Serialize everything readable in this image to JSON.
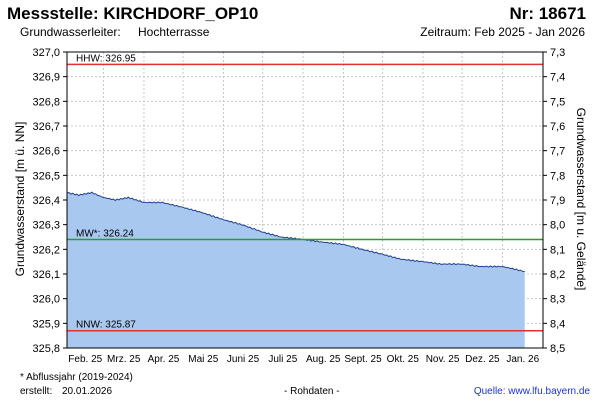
{
  "header": {
    "title": "Messstelle: KIRCHDORF_OP10",
    "number": "Nr: 18671",
    "aquifer_label": "Grundwasserleiter:",
    "aquifer_value": "Hochterrasse",
    "period": "Zeitraum: Feb 2025 - Jan 2026"
  },
  "footer": {
    "note": "* Abflussjahr (2019-2024)",
    "created_label": "erstellt:",
    "created_date": "20.01.2026",
    "rawdata": "- Rohdaten -",
    "source": "Quelle: www.lfu.bayern.de"
  },
  "colors": {
    "area_fill": "#a9c8ef",
    "line": "#1f3f8f",
    "hhw": "#e03030",
    "mw": "#2a9a2a",
    "nnw": "#e03030",
    "grid": "#c8c8c8"
  },
  "chart_data": {
    "type": "area",
    "ylabel": "Grundwasserstand [m ü. NN]",
    "y2label": "Grundwasserstand [m u. Gelände]",
    "ylim": [
      325.8,
      327.0
    ],
    "y2lim": [
      7.3,
      8.5
    ],
    "yticks": [
      "327,0",
      "326,9",
      "326,8",
      "326,7",
      "326,6",
      "326,5",
      "326,4",
      "326,3",
      "326,2",
      "326,1",
      "326,0",
      "325,9",
      "325,8"
    ],
    "y2ticks": [
      "7,3",
      "7,4",
      "7,5",
      "7,6",
      "7,7",
      "7,8",
      "7,9",
      "8,0",
      "8,1",
      "8,2",
      "8,3",
      "8,4",
      "8,5"
    ],
    "xticks": [
      "Feb. 25",
      "Mrz. 25",
      "Apr. 25",
      "Mai 25",
      "Juni 25",
      "Juli 25",
      "Aug. 25",
      "Sept. 25",
      "Okt. 25",
      "Nov. 25",
      "Dez. 25",
      "Jan. 26"
    ],
    "grid": true,
    "reference_lines": [
      {
        "label": "HHW: 326.95",
        "value": 326.95,
        "color": "#e03030"
      },
      {
        "label": "MW*: 326.24",
        "value": 326.24,
        "color": "#2a9a2a"
      },
      {
        "label": "NNW: 325.87",
        "value": 325.87,
        "color": "#e03030"
      }
    ],
    "series": [
      {
        "x": [
          "2025-02-01",
          "2025-02-10",
          "2025-02-20",
          "2025-03-01",
          "2025-03-10",
          "2025-03-20",
          "2025-04-01",
          "2025-04-15",
          "2025-05-01",
          "2025-05-15",
          "2025-06-01",
          "2025-06-15",
          "2025-07-01",
          "2025-07-15",
          "2025-08-01",
          "2025-08-15",
          "2025-09-01",
          "2025-09-15",
          "2025-10-01",
          "2025-10-15",
          "2025-11-01",
          "2025-11-15",
          "2025-12-01",
          "2025-12-15",
          "2026-01-01",
          "2026-01-10",
          "2026-01-18"
        ],
        "values": [
          326.43,
          326.42,
          326.43,
          326.41,
          326.4,
          326.41,
          326.39,
          326.39,
          326.37,
          326.35,
          326.32,
          326.3,
          326.27,
          326.25,
          326.24,
          326.23,
          326.22,
          326.2,
          326.18,
          326.16,
          326.15,
          326.14,
          326.14,
          326.13,
          326.13,
          326.12,
          326.11
        ]
      }
    ]
  }
}
